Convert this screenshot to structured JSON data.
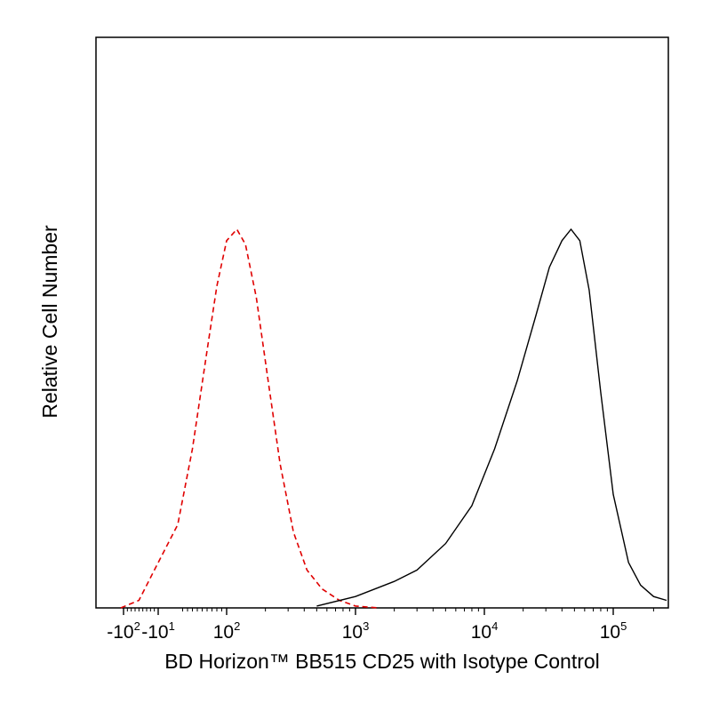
{
  "chart_data": {
    "type": "line",
    "xlabel": "BD Horizon™ BB515 CD25 with Isotype Control",
    "ylabel": "Relative Cell Number",
    "x_scale": "biexponential (log above 10^2, linear around 0)",
    "xlim": [
      -300,
      250000
    ],
    "ylim": [
      0,
      1
    ],
    "grid": false,
    "legend": "none",
    "x_ticks": [
      {
        "base": "-10",
        "exp": "2",
        "value": -100
      },
      {
        "base": "-10",
        "exp": "1",
        "value": -10
      },
      {
        "base": "10",
        "exp": "2",
        "value": 100
      },
      {
        "base": "10",
        "exp": "3",
        "value": 1000
      },
      {
        "base": "10",
        "exp": "4",
        "value": 10000
      },
      {
        "base": "10",
        "exp": "5",
        "value": 100000
      }
    ],
    "series": [
      {
        "style": "dashed",
        "color": "#e00000",
        "x": [
          -120,
          -60,
          -20,
          0,
          30,
          60,
          80,
          100,
          120,
          140,
          170,
          210,
          260,
          330,
          420,
          550,
          750,
          1000,
          1500
        ],
        "y": [
          0.0,
          0.02,
          0.1,
          0.22,
          0.42,
          0.68,
          0.85,
          0.97,
          1.0,
          0.96,
          0.82,
          0.6,
          0.38,
          0.2,
          0.1,
          0.05,
          0.02,
          0.005,
          0.0
        ]
      },
      {
        "style": "solid",
        "color": "#000000",
        "x": [
          500,
          1000,
          2000,
          3000,
          5000,
          8000,
          12000,
          18000,
          25000,
          32000,
          40000,
          47000,
          55000,
          65000,
          80000,
          100000,
          130000,
          160000,
          200000,
          250000
        ],
        "y": [
          0.005,
          0.03,
          0.07,
          0.1,
          0.17,
          0.27,
          0.42,
          0.6,
          0.77,
          0.9,
          0.97,
          1.0,
          0.97,
          0.84,
          0.57,
          0.3,
          0.12,
          0.06,
          0.03,
          0.02
        ]
      }
    ]
  }
}
